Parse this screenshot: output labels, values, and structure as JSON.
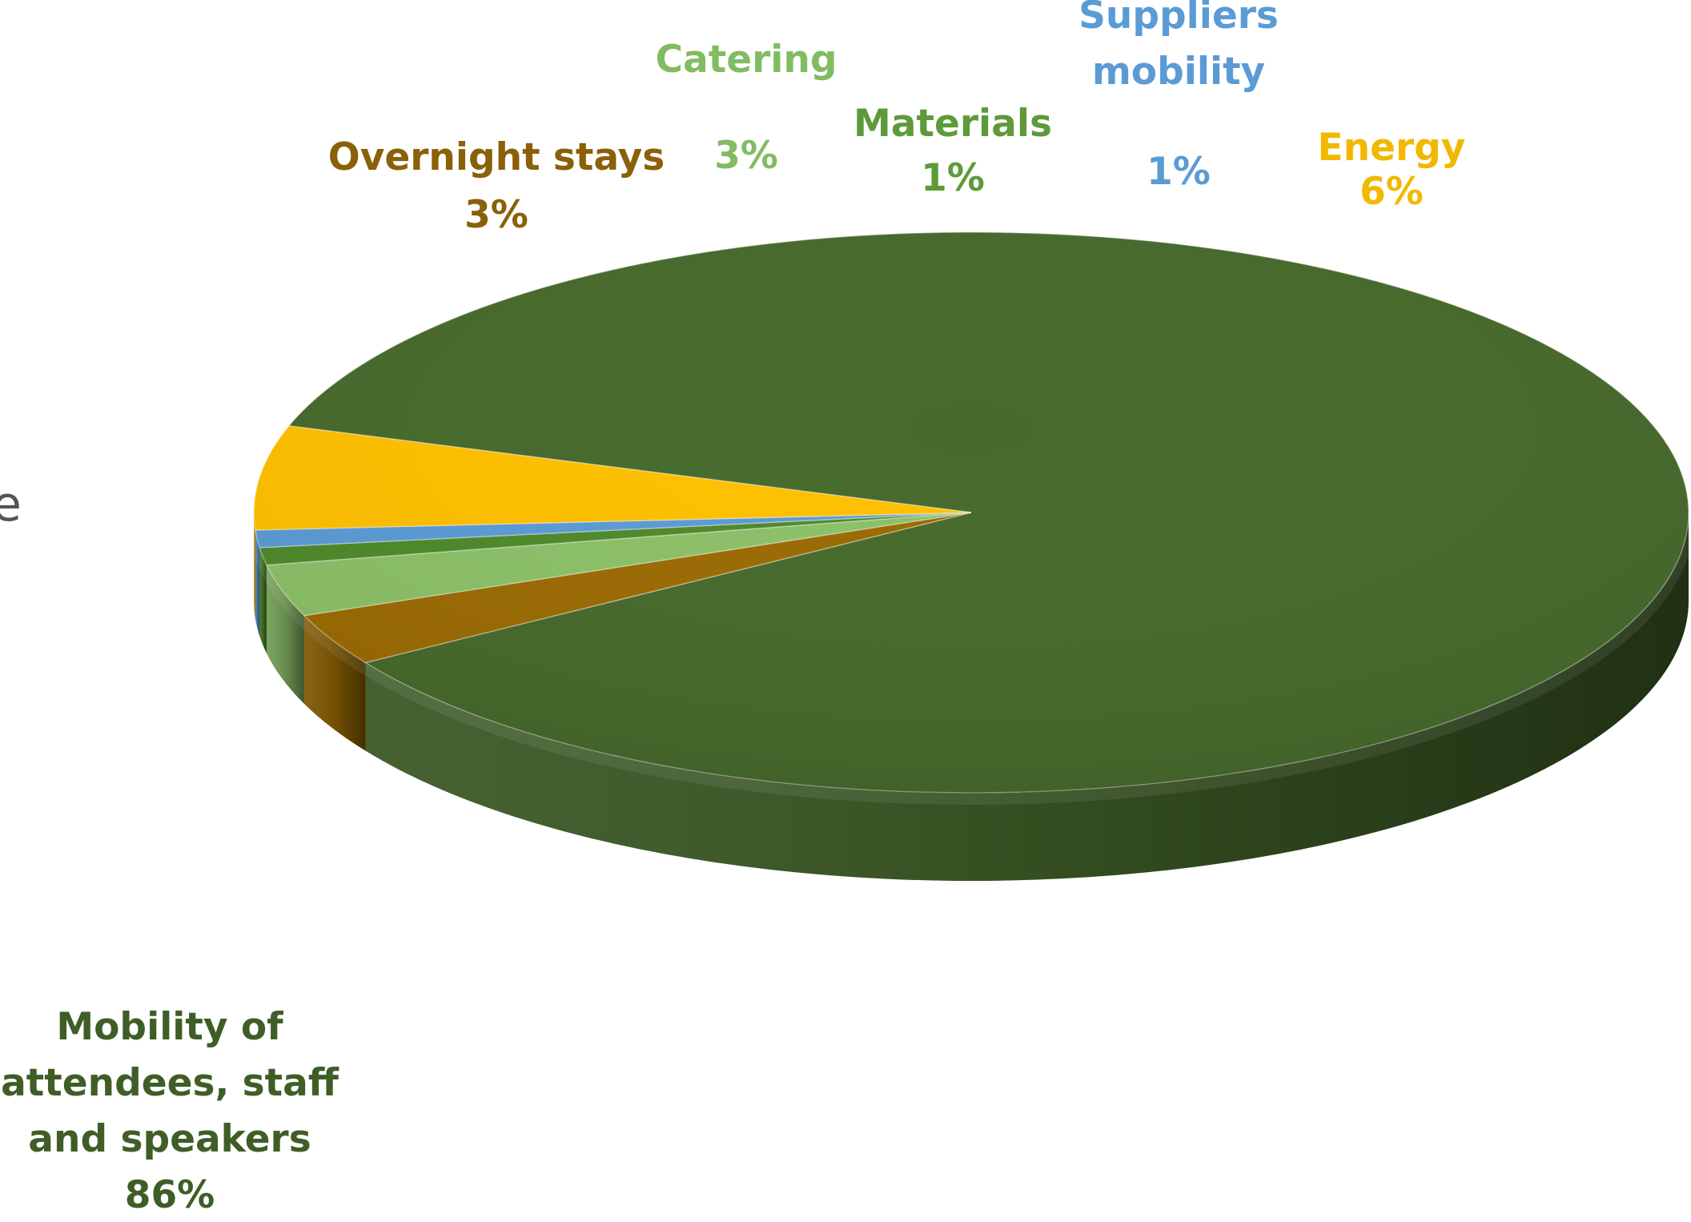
{
  "chart_data": {
    "type": "pie",
    "style": "3d",
    "title": "",
    "slices": [
      {
        "name": "Mobility of attendees, staff and speakers",
        "lines": [
          "Mobility of",
          "attendees, staff",
          "and speakers"
        ],
        "pct_label": "86%",
        "value": 86,
        "color": "#476A2C",
        "label_color": "#3F5E27"
      },
      {
        "name": "Overnight stays",
        "lines": [
          "Overnight stays"
        ],
        "pct_label": "3%",
        "value": 3,
        "color": "#9B6B04",
        "label_color": "#8A6008"
      },
      {
        "name": "Catering",
        "lines": [
          "Catering"
        ],
        "pct_label": "3%",
        "value": 3,
        "color": "#8CC068",
        "label_color": "#82BC62"
      },
      {
        "name": "Materials",
        "lines": [
          "Materials"
        ],
        "pct_label": "1%",
        "value": 1,
        "color": "#4F8A2B",
        "label_color": "#5E9A3A"
      },
      {
        "name": "Suppliers mobility",
        "lines": [
          "Suppliers",
          "mobility"
        ],
        "pct_label": "1%",
        "value": 1,
        "color": "#5B9BD5",
        "label_color": "#5B9BD5"
      },
      {
        "name": "Energy",
        "lines": [
          "Energy"
        ],
        "pct_label": "6%",
        "value": 6,
        "color": "#FFC000",
        "label_color": "#F2B800"
      }
    ],
    "legend": "none"
  },
  "clipped_text": "e"
}
